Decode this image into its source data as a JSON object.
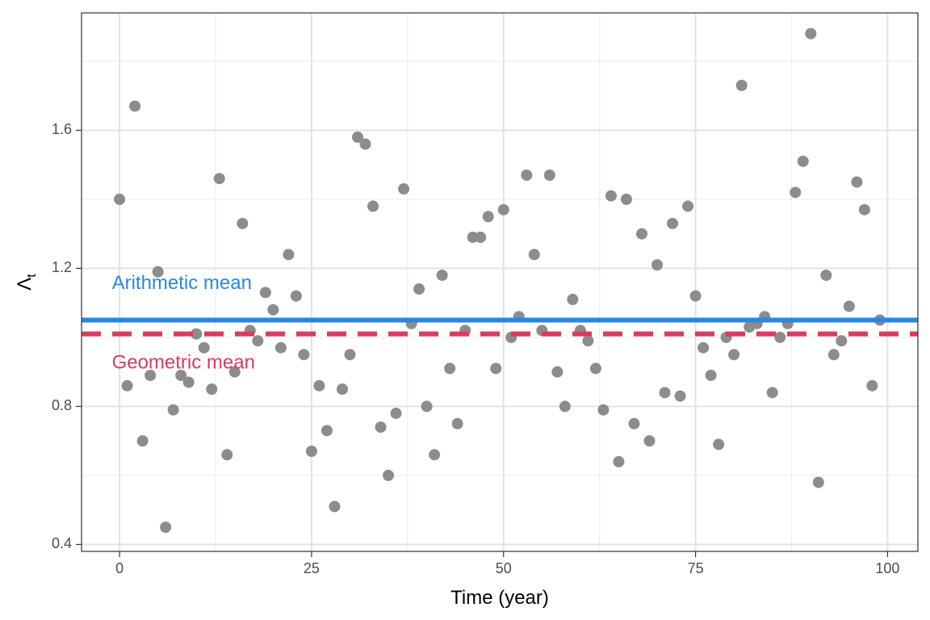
{
  "chart_data": {
    "type": "scatter",
    "title": "",
    "xlabel": "Time (year)",
    "ylabel": {
      "main": "Λ",
      "sub": "t"
    },
    "xlim": [
      -4.95,
      103.95
    ],
    "ylim": [
      0.38,
      1.94
    ],
    "x_ticks": [
      0,
      25,
      50,
      75,
      100
    ],
    "x_tick_labels": [
      "0",
      "25",
      "50",
      "75",
      "100"
    ],
    "y_ticks": [
      0.4,
      0.8,
      1.2,
      1.6
    ],
    "y_tick_labels": [
      "0.4",
      "0.8",
      "1.2",
      "1.6"
    ],
    "grid": true,
    "point_color": "#8c8c8c",
    "x": [
      0,
      1,
      2,
      3,
      4,
      5,
      6,
      7,
      8,
      9,
      10,
      11,
      12,
      13,
      14,
      15,
      16,
      17,
      18,
      19,
      20,
      21,
      22,
      23,
      24,
      25,
      26,
      27,
      28,
      29,
      30,
      31,
      32,
      33,
      34,
      35,
      36,
      37,
      38,
      39,
      40,
      41,
      42,
      43,
      44,
      45,
      46,
      47,
      48,
      49,
      50,
      51,
      52,
      53,
      54,
      55,
      56,
      57,
      58,
      59,
      60,
      61,
      62,
      63,
      64,
      65,
      66,
      67,
      68,
      69,
      70,
      71,
      72,
      73,
      74,
      75,
      76,
      77,
      78,
      79,
      80,
      81,
      82,
      83,
      84,
      85,
      86,
      87,
      88,
      89,
      90,
      91,
      92,
      93,
      94,
      95,
      96,
      97,
      98,
      99
    ],
    "y": [
      1.4,
      0.86,
      1.67,
      0.7,
      0.89,
      1.19,
      0.45,
      0.79,
      0.89,
      0.87,
      1.01,
      0.97,
      0.85,
      1.46,
      0.66,
      0.9,
      1.33,
      1.02,
      0.99,
      1.13,
      1.08,
      0.97,
      1.24,
      1.12,
      0.95,
      0.67,
      0.86,
      0.73,
      0.51,
      0.85,
      0.95,
      1.58,
      1.56,
      1.38,
      0.74,
      0.6,
      0.78,
      1.43,
      1.04,
      1.14,
      0.8,
      0.66,
      1.18,
      0.91,
      0.75,
      1.02,
      1.29,
      1.29,
      1.35,
      0.91,
      1.37,
      1.0,
      1.06,
      1.47,
      1.24,
      1.02,
      1.47,
      0.9,
      0.8,
      1.11,
      1.02,
      0.99,
      0.91,
      0.79,
      1.41,
      0.64,
      1.4,
      0.75,
      1.3,
      0.7,
      1.21,
      0.84,
      1.33,
      0.83,
      1.38,
      1.12,
      0.97,
      0.89,
      0.69,
      1.0,
      0.95,
      1.73,
      1.03,
      1.04,
      1.06,
      0.84,
      1.0,
      1.04,
      1.42,
      1.51,
      1.88,
      0.58,
      1.18,
      0.95,
      0.99,
      1.09,
      1.45,
      1.37,
      0.86,
      1.05
    ],
    "reference_lines": [
      {
        "name": "Arithmetic mean",
        "y": 1.05,
        "color": "#2a87e0",
        "style": "solid"
      },
      {
        "name": "Geometric mean",
        "y": 1.01,
        "color": "#d63d5e",
        "style": "dashed"
      }
    ],
    "annotations": [
      {
        "text": "Arithmetic mean",
        "x": -1,
        "y": 1.155,
        "color": "#2a87e0"
      },
      {
        "text": "Geometric mean",
        "x": -1,
        "y": 0.925,
        "color": "#d63d5e"
      }
    ]
  }
}
